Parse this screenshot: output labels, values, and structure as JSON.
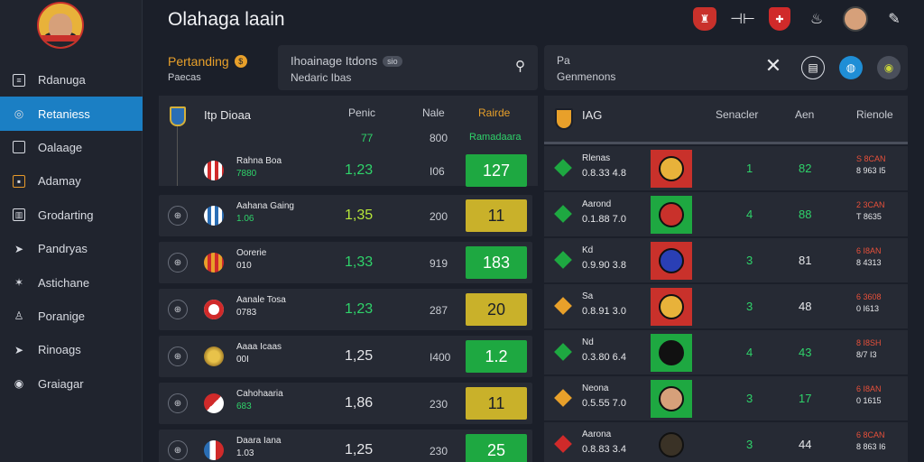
{
  "app": {
    "title": "Olahaga laain"
  },
  "colors": {
    "accent": "#1b7fc4",
    "green": "#1ea841",
    "yellow": "#c9b12a",
    "orange": "#e8a02a",
    "red": "#d02a2a"
  },
  "sidebar": {
    "items": [
      {
        "label": "Rdanuga",
        "icon": "list-icon",
        "active": false
      },
      {
        "label": "Retaniess",
        "icon": "chat-icon",
        "active": true
      },
      {
        "label": "Oalaage",
        "icon": "square-icon",
        "active": false
      },
      {
        "label": "Adamay",
        "icon": "card-icon",
        "active": false
      },
      {
        "label": "Grodarting",
        "icon": "chart-icon",
        "active": false
      },
      {
        "label": "Pandryas",
        "icon": "cursor-icon",
        "active": false
      },
      {
        "label": "Astichane",
        "icon": "star-icon",
        "active": false
      },
      {
        "label": "Poranige",
        "icon": "people-icon",
        "active": false
      },
      {
        "label": "Rinoags",
        "icon": "arrow-icon",
        "active": false
      },
      {
        "label": "Graiagar",
        "icon": "circle-icon",
        "active": false
      }
    ]
  },
  "pending": {
    "label": "Pertanding",
    "sub": "Paecas"
  },
  "search": {
    "line1": "Ihoainage Itdons",
    "pill": "sio",
    "line2": "Nedaric Ibas"
  },
  "summary": {
    "line1": "Pa",
    "line2": "Genmenons"
  },
  "left_table": {
    "title": "Itp Dioaa",
    "headers": {
      "col1": "Penic",
      "col2": "Nale",
      "col3": "Rairde"
    },
    "sub_headers": {
      "col1": "77",
      "col2": "800",
      "col3": "Ramadaara"
    },
    "rows": [
      {
        "name": "Rahna Boa",
        "score": "7880",
        "odds": "1,23",
        "mid": "I06",
        "box": "127",
        "box_color": "green",
        "crest": "stripes-red"
      },
      {
        "name": "Aahana Gaing",
        "score": "1.06",
        "odds": "1,35",
        "mid": "200",
        "box": "11",
        "box_color": "yellow",
        "crest": "stripes-blue"
      },
      {
        "name": "Oorerie",
        "score": "010",
        "odds": "1,33",
        "mid": "919",
        "box": "183",
        "box_color": "green",
        "crest": "stripes-orange"
      },
      {
        "name": "Aanale Tosa",
        "score": "0783",
        "odds": "1,23",
        "mid": "287",
        "box": "20",
        "box_color": "yellow",
        "crest": "red-square"
      },
      {
        "name": "Aaaa Icaas",
        "score": "00I",
        "odds": "1,25",
        "mid": "I400",
        "box": "1.2",
        "box_color": "green",
        "crest": "gold"
      },
      {
        "name": "Cahohaaria",
        "score": "683",
        "odds": "1,86",
        "mid": "230",
        "box": "11",
        "box_color": "yellow",
        "crest": "flag-red"
      },
      {
        "name": "Daara Iana",
        "score": "1.03",
        "odds": "1,25",
        "mid": "230",
        "box": "25",
        "box_color": "green",
        "crest": "flag-blue"
      }
    ]
  },
  "right_table": {
    "title": "IAG",
    "headers": {
      "col1": "Senacler",
      "col2": "Aen",
      "col3": "Rienole"
    },
    "rows": [
      {
        "name": "Rlenas",
        "score": "0.8.33  4.8",
        "v1": "1",
        "v2": "82",
        "v2_color": "green",
        "v3a": "S 8CAN",
        "v3b": "8 963 I5",
        "diamond": "green",
        "bg": "#c9312b",
        "ball": "#e8b23a"
      },
      {
        "name": "Aarond",
        "score": "0.1.88  7.0",
        "v1": "4",
        "v2": "88",
        "v2_color": "green",
        "v3a": "2 3CAN",
        "v3b": "T 8635",
        "diamond": "green",
        "bg": "#1ea841",
        "ball": "#c9312b"
      },
      {
        "name": "Kd",
        "score": "0.9.90  3.8",
        "v1": "3",
        "v2": "81",
        "v2_color": "white",
        "v3a": "6 I8AN",
        "v3b": "8 4313",
        "diamond": "green",
        "bg": "#c9312b",
        "ball": "#2a3fb5"
      },
      {
        "name": "Sa",
        "score": "0.8.91  3.0",
        "v1": "3",
        "v2": "48",
        "v2_color": "white",
        "v3a": "6 3608",
        "v3b": "0 I613",
        "diamond": "orange",
        "bg": "#c9312b",
        "ball": "#e8b23a"
      },
      {
        "name": "Nd",
        "score": "0.3.80  6.4",
        "v1": "4",
        "v2": "43",
        "v2_color": "green",
        "v3a": "8 I8SH",
        "v3b": "8/7 I3",
        "diamond": "green",
        "bg": "#1ea841",
        "ball": "#111111"
      },
      {
        "name": "Neona",
        "score": "0.5.55  7.0",
        "v1": "3",
        "v2": "17",
        "v2_color": "green",
        "v3a": "6 I8AN",
        "v3b": "0 1615",
        "diamond": "orange",
        "bg": "#1ea841",
        "ball": "#d6a07a"
      },
      {
        "name": "Aarona",
        "score": "0.8.83  3.4",
        "v1": "3",
        "v2": "44",
        "v2_color": "white",
        "v3a": "6 8CAN",
        "v3b": "8 863 I6",
        "diamond": "red",
        "bg": "#262a34",
        "ball": "#3a3226"
      }
    ]
  }
}
